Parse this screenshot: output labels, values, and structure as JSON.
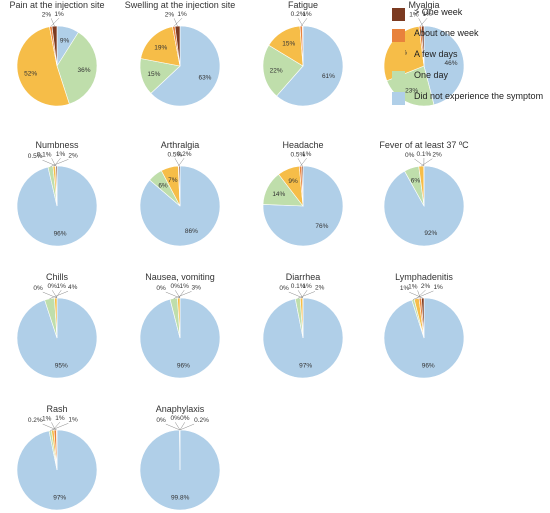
{
  "legend": [
    {
      "key": "gt_week",
      "label": "> One week",
      "color": "#7b3a21"
    },
    {
      "key": "about_week",
      "label": "About one week",
      "color": "#e8823c"
    },
    {
      "key": "few_days",
      "label": "A few days",
      "color": "#f6bd48"
    },
    {
      "key": "one_day",
      "label": "One day",
      "color": "#bfdeab"
    },
    {
      "key": "none",
      "label": "Did not experience the symptom",
      "color": "#b0cfe8"
    }
  ],
  "chart_data": [
    {
      "type": "pie",
      "title": "Pain at the injection site",
      "slices": [
        {
          "category": "gt_week",
          "value": 2,
          "label": "2%"
        },
        {
          "category": "about_week",
          "value": 1,
          "label": "1%"
        },
        {
          "category": "few_days",
          "value": 52,
          "label": "52%"
        },
        {
          "category": "one_day",
          "value": 36,
          "label": "36%"
        },
        {
          "category": "none",
          "value": 9,
          "label": "9%"
        }
      ]
    },
    {
      "type": "pie",
      "title": "Swelling at the injection site",
      "slices": [
        {
          "category": "gt_week",
          "value": 2,
          "label": "2%"
        },
        {
          "category": "about_week",
          "value": 1,
          "label": "1%"
        },
        {
          "category": "few_days",
          "value": 19,
          "label": "19%"
        },
        {
          "category": "one_day",
          "value": 15,
          "label": "15%"
        },
        {
          "category": "none",
          "value": 63,
          "label": "63%"
        }
      ]
    },
    {
      "type": "pie",
      "title": "Fatigue",
      "slices": [
        {
          "category": "gt_week",
          "value": 0.2,
          "label": "0.2%"
        },
        {
          "category": "about_week",
          "value": 1,
          "label": "1%"
        },
        {
          "category": "few_days",
          "value": 15,
          "label": "15%"
        },
        {
          "category": "one_day",
          "value": 22,
          "label": "22%"
        },
        {
          "category": "none",
          "value": 61,
          "label": "61%"
        }
      ]
    },
    {
      "type": "pie",
      "title": "Myalgia",
      "slices": [
        {
          "category": "gt_week",
          "value": 1,
          "label": "1%"
        },
        {
          "category": "about_week",
          "value": 1,
          "label": "1%"
        },
        {
          "category": "few_days",
          "value": 29,
          "label": "29%"
        },
        {
          "category": "one_day",
          "value": 23,
          "label": "23%"
        },
        {
          "category": "none",
          "value": 46,
          "label": "46%"
        }
      ]
    },
    {
      "type": "pie",
      "title": "Numbness",
      "slices": [
        {
          "category": "gt_week",
          "value": 0.5,
          "label": "0.5%"
        },
        {
          "category": "about_week",
          "value": 0.1,
          "label": "0.1%"
        },
        {
          "category": "few_days",
          "value": 1,
          "label": "1%"
        },
        {
          "category": "one_day",
          "value": 2,
          "label": "2%"
        },
        {
          "category": "none",
          "value": 96,
          "label": "96%"
        }
      ]
    },
    {
      "type": "pie",
      "title": "Arthralgia",
      "slices": [
        {
          "category": "gt_week",
          "value": 0.5,
          "label": "0.5%"
        },
        {
          "category": "about_week",
          "value": 0.2,
          "label": "0.2%"
        },
        {
          "category": "few_days",
          "value": 7,
          "label": "7%"
        },
        {
          "category": "one_day",
          "value": 6,
          "label": "6%"
        },
        {
          "category": "none",
          "value": 86,
          "label": "86%"
        }
      ]
    },
    {
      "type": "pie",
      "title": "Headache",
      "slices": [
        {
          "category": "gt_week",
          "value": 0.5,
          "label": "0.5%"
        },
        {
          "category": "about_week",
          "value": 1,
          "label": "1%"
        },
        {
          "category": "few_days",
          "value": 9,
          "label": "9%"
        },
        {
          "category": "one_day",
          "value": 14,
          "label": "14%"
        },
        {
          "category": "none",
          "value": 76,
          "label": "76%"
        }
      ]
    },
    {
      "type": "pie",
      "title": "Fever of at least 37 ºC",
      "slices": [
        {
          "category": "gt_week",
          "value": 0,
          "label": "0%"
        },
        {
          "category": "about_week",
          "value": 0.1,
          "label": "0.1%"
        },
        {
          "category": "few_days",
          "value": 2,
          "label": "2%"
        },
        {
          "category": "one_day",
          "value": 6,
          "label": "6%"
        },
        {
          "category": "none",
          "value": 92,
          "label": "92%"
        }
      ]
    },
    {
      "type": "pie",
      "title": "Chills",
      "slices": [
        {
          "category": "gt_week",
          "value": 0,
          "label": "0%"
        },
        {
          "category": "about_week",
          "value": 0,
          "label": "0%"
        },
        {
          "category": "few_days",
          "value": 1,
          "label": "1%"
        },
        {
          "category": "one_day",
          "value": 4,
          "label": "4%"
        },
        {
          "category": "none",
          "value": 95,
          "label": "95%"
        }
      ]
    },
    {
      "type": "pie",
      "title": "Nausea, vomiting",
      "slices": [
        {
          "category": "gt_week",
          "value": 0,
          "label": "0%"
        },
        {
          "category": "about_week",
          "value": 0,
          "label": "0%"
        },
        {
          "category": "few_days",
          "value": 1,
          "label": "1%"
        },
        {
          "category": "one_day",
          "value": 3,
          "label": "3%"
        },
        {
          "category": "none",
          "value": 96,
          "label": "96%"
        }
      ]
    },
    {
      "type": "pie",
      "title": "Diarrhea",
      "slices": [
        {
          "category": "gt_week",
          "value": 0,
          "label": "0%"
        },
        {
          "category": "about_week",
          "value": 0.1,
          "label": "0.1%"
        },
        {
          "category": "few_days",
          "value": 1,
          "label": "1%"
        },
        {
          "category": "one_day",
          "value": 2,
          "label": "2%"
        },
        {
          "category": "none",
          "value": 97,
          "label": "97%"
        }
      ]
    },
    {
      "type": "pie",
      "title": "Lymphadenitis",
      "slices": [
        {
          "category": "gt_week",
          "value": 1,
          "label": "1%"
        },
        {
          "category": "about_week",
          "value": 1,
          "label": "1%"
        },
        {
          "category": "few_days",
          "value": 2,
          "label": "2%"
        },
        {
          "category": "one_day",
          "value": 1,
          "label": "1%"
        },
        {
          "category": "none",
          "value": 96,
          "label": "96%"
        }
      ]
    },
    {
      "type": "pie",
      "title": "Rash",
      "slices": [
        {
          "category": "gt_week",
          "value": 0.2,
          "label": "0.2%"
        },
        {
          "category": "about_week",
          "value": 1,
          "label": "1%"
        },
        {
          "category": "few_days",
          "value": 1,
          "label": "1%"
        },
        {
          "category": "one_day",
          "value": 1,
          "label": "1%"
        },
        {
          "category": "none",
          "value": 97,
          "label": "97%"
        }
      ]
    },
    {
      "type": "pie",
      "title": "Anaphylaxis",
      "slices": [
        {
          "category": "gt_week",
          "value": 0,
          "label": "0%"
        },
        {
          "category": "about_week",
          "value": 0,
          "label": "0%"
        },
        {
          "category": "few_days",
          "value": 0,
          "label": "0%"
        },
        {
          "category": "one_day",
          "value": 0.2,
          "label": "0.2%"
        },
        {
          "category": "none",
          "value": 99.8,
          "label": "99.8%"
        }
      ]
    }
  ]
}
